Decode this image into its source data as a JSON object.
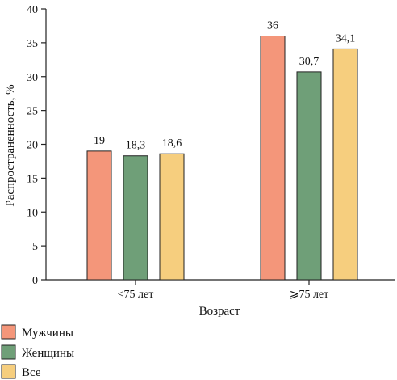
{
  "chart_data": {
    "type": "bar",
    "categories": [
      "<75 лет",
      "⩾75 лет"
    ],
    "series": [
      {
        "name": "Мужчины",
        "values": [
          19,
          36
        ],
        "labels": [
          "19",
          "36"
        ],
        "color": "#F4967A"
      },
      {
        "name": "Женщины",
        "values": [
          18.3,
          30.7
        ],
        "labels": [
          "18,3",
          "30,7"
        ],
        "color": "#6F9F78"
      },
      {
        "name": "Все",
        "values": [
          18.6,
          34.1
        ],
        "labels": [
          "18,6",
          "34,1"
        ],
        "color": "#F6CE7E"
      }
    ],
    "xlabel": "Возраст",
    "ylabel": "Распространенность, %",
    "ylim": [
      0,
      40
    ],
    "yticks": [
      "0",
      "5",
      "10",
      "15",
      "20",
      "25",
      "30",
      "35",
      "40"
    ],
    "grid": false,
    "legend_position": "bottom-left"
  }
}
